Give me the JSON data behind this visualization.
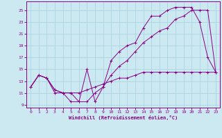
{
  "xlabel": "Windchill (Refroidissement éolien,°C)",
  "background_color": "#cce8f0",
  "grid_color": "#b0d8e4",
  "line_color": "#880088",
  "xlim": [
    -0.5,
    23.5
  ],
  "ylim": [
    8.5,
    26.5
  ],
  "xticks": [
    0,
    1,
    2,
    3,
    4,
    5,
    6,
    7,
    8,
    9,
    10,
    11,
    12,
    13,
    14,
    15,
    16,
    17,
    18,
    19,
    20,
    21,
    22,
    23
  ],
  "yticks": [
    9,
    11,
    13,
    15,
    17,
    19,
    21,
    23,
    25
  ],
  "series1_x": [
    0,
    1,
    2,
    3,
    4,
    5,
    6,
    7,
    8,
    9,
    10,
    11,
    12,
    13,
    14,
    15,
    16,
    17,
    18,
    19,
    20,
    21,
    22,
    23
  ],
  "series1_y": [
    12.0,
    14.0,
    13.5,
    11.0,
    11.0,
    9.5,
    9.5,
    15.0,
    9.5,
    12.0,
    16.5,
    18.0,
    19.0,
    19.5,
    22.0,
    24.0,
    24.0,
    25.0,
    25.5,
    25.5,
    25.5,
    23.0,
    17.0,
    14.5
  ],
  "series2_x": [
    0,
    1,
    2,
    3,
    4,
    5,
    6,
    7,
    8,
    9,
    10,
    11,
    12,
    13,
    14,
    15,
    16,
    17,
    18,
    19,
    20,
    21,
    22,
    23
  ],
  "series2_y": [
    12.0,
    14.0,
    13.5,
    11.5,
    11.0,
    11.0,
    9.5,
    9.5,
    11.0,
    12.0,
    14.0,
    15.5,
    16.5,
    18.0,
    19.5,
    20.5,
    21.5,
    22.0,
    23.5,
    24.0,
    25.0,
    25.0,
    25.0,
    14.5
  ],
  "series3_x": [
    0,
    1,
    2,
    3,
    4,
    5,
    6,
    7,
    8,
    9,
    10,
    11,
    12,
    13,
    14,
    15,
    16,
    17,
    18,
    19,
    20,
    21,
    22,
    23
  ],
  "series3_y": [
    12.0,
    14.0,
    13.5,
    11.5,
    11.0,
    11.0,
    11.0,
    11.5,
    12.0,
    12.5,
    13.0,
    13.5,
    13.5,
    14.0,
    14.5,
    14.5,
    14.5,
    14.5,
    14.5,
    14.5,
    14.5,
    14.5,
    14.5,
    14.5
  ]
}
